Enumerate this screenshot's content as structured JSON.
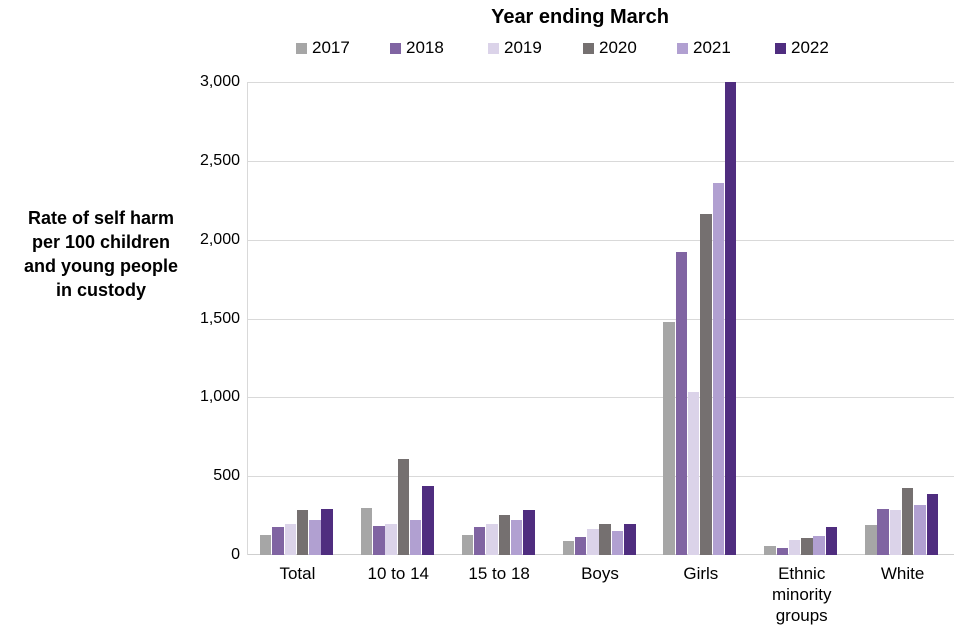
{
  "chart": {
    "title": "Year ending March",
    "y_axis_title": "Rate of self harm\nper 100 children\nand young people\nin custody"
  },
  "chart_data": {
    "type": "bar",
    "title": "Year ending March",
    "ylabel": "Rate of self harm per 100 children and young people in custody",
    "categories": [
      "Total",
      "10 to 14",
      "15 to 18",
      "Boys",
      "Girls",
      "Ethnic minority groups",
      "White"
    ],
    "categories_display": [
      "Total",
      "10 to 14",
      "15 to 18",
      "Boys",
      "Girls",
      "Ethnic\nminority\ngroups",
      "White"
    ],
    "series": [
      {
        "name": "2017",
        "color": "#a6a6a6",
        "values": [
          130,
          300,
          125,
          90,
          1480,
          60,
          190
        ]
      },
      {
        "name": "2018",
        "color": "#8064a2",
        "values": [
          180,
          185,
          175,
          115,
          1925,
          45,
          290
        ]
      },
      {
        "name": "2019",
        "color": "#dbd3e9",
        "values": [
          195,
          200,
          195,
          165,
          1035,
          95,
          285
        ]
      },
      {
        "name": "2020",
        "color": "#757070",
        "values": [
          285,
          610,
          255,
          200,
          2160,
          110,
          425
        ]
      },
      {
        "name": "2021",
        "color": "#b1a0d1",
        "values": [
          225,
          220,
          220,
          150,
          2360,
          120,
          320
        ]
      },
      {
        "name": "2022",
        "color": "#4f2d7f",
        "values": [
          290,
          440,
          285,
          195,
          3000,
          180,
          385
        ]
      }
    ],
    "ylim": [
      0,
      3000
    ],
    "ytick_interval": 500,
    "ytick_labels": [
      "0",
      "500",
      "1,000",
      "1,500",
      "2,000",
      "2,500",
      "3,000"
    ],
    "grid": true,
    "legend_position": "top",
    "legend_labels": [
      "2017",
      "2018",
      "2019",
      "2020",
      "2021",
      "2022"
    ],
    "colors": {
      "gridline": "#d9d9d9",
      "axis_line": "#cfcfcf",
      "text": "#000000"
    }
  }
}
